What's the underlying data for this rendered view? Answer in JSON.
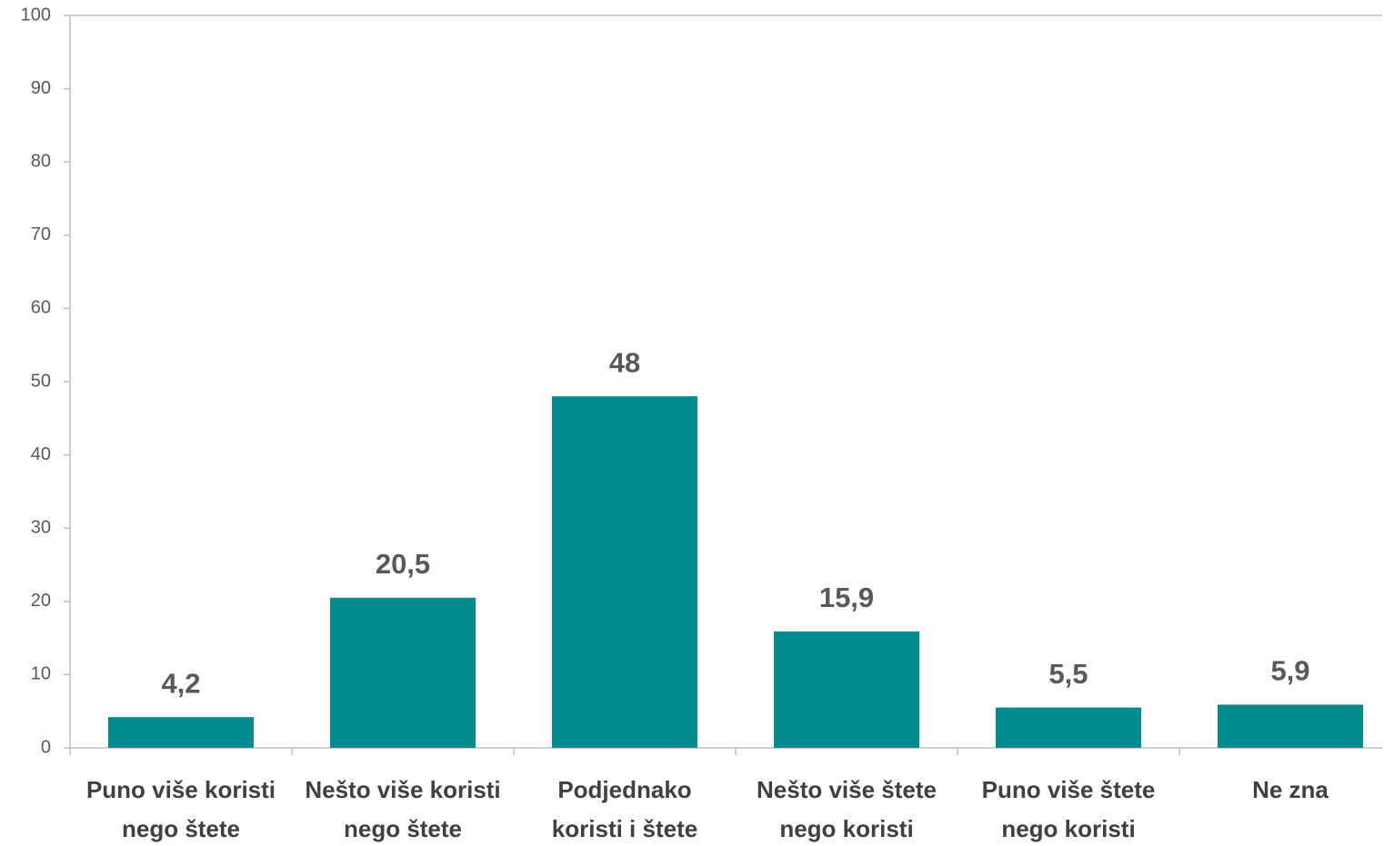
{
  "chart_data": {
    "type": "bar",
    "categories": [
      [
        "Puno više koristi",
        "nego štete"
      ],
      [
        "Nešto više koristi",
        "nego štete"
      ],
      [
        "Podjednako",
        "koristi i štete"
      ],
      [
        "Nešto više štete",
        "nego koristi"
      ],
      [
        "Puno više štete",
        "nego koristi"
      ],
      [
        "Ne zna"
      ]
    ],
    "values": [
      4.2,
      20.5,
      48,
      15.9,
      5.5,
      5.9
    ],
    "value_labels": [
      "4,2",
      "20,5",
      "48",
      "15,9",
      "5,5",
      "5,9"
    ],
    "color": "#008b8f",
    "ylim": [
      0,
      100
    ],
    "yticks": [
      0,
      10,
      20,
      30,
      40,
      50,
      60,
      70,
      80,
      90,
      100
    ],
    "grid": false
  }
}
